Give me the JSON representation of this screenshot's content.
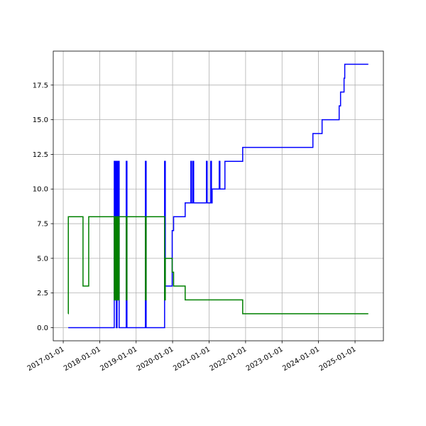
{
  "chart_data": {
    "type": "line",
    "drawstyle": "steps-post",
    "grid": true,
    "xlim": [
      "2016-09-23",
      "2025-10-12"
    ],
    "xticks": [
      "2017-01-01",
      "2018-01-01",
      "2019-01-01",
      "2020-01-01",
      "2021-01-01",
      "2022-01-01",
      "2023-01-01",
      "2024-01-01",
      "2025-01-01"
    ],
    "ylim": [
      -0.95,
      19.95
    ],
    "yticks": [
      {
        "value": 0,
        "label": "0.0"
      },
      2.5,
      {
        "value": 5,
        "label": "5.0"
      },
      7.5,
      {
        "value": 10,
        "label": "10.0"
      },
      12.5,
      {
        "value": 15,
        "label": "15.0"
      },
      17.5
    ],
    "series": [
      {
        "color": "#0000ff",
        "x": [
          "2017-02-20",
          "2018-05-27",
          "2018-06-03",
          "2018-06-10",
          "2018-06-17",
          "2018-06-24",
          "2018-07-01",
          "2018-07-08",
          "2018-07-15",
          "2018-09-24",
          "2018-10-01",
          "2019-04-04",
          "2019-04-11",
          "2019-10-13",
          "2019-10-20",
          "2019-12-28",
          "2020-01-11",
          "2020-05-06",
          "2020-07-02",
          "2020-07-09",
          "2020-07-23",
          "2020-07-30",
          "2020-12-05",
          "2020-12-12",
          "2021-01-17",
          "2021-01-24",
          "2021-01-31",
          "2021-04-12",
          "2021-04-19",
          "2021-06-08",
          "2021-12-03",
          "2023-11-06",
          "2024-02-06",
          "2024-07-26",
          "2024-08-09",
          "2024-09-13",
          "2024-09-20",
          "2025-05-14"
        ],
        "values": [
          0,
          12,
          2,
          12,
          0,
          12,
          2,
          12,
          0,
          12,
          0,
          12,
          0,
          12,
          3,
          7,
          8,
          9,
          12,
          9,
          12,
          9,
          12,
          9,
          12,
          9,
          10,
          12,
          10,
          12,
          13,
          14,
          15,
          16,
          17,
          18,
          19,
          19
        ]
      },
      {
        "color": "#008000",
        "x": [
          "2017-02-20",
          "2017-02-21",
          "2017-07-18",
          "2017-09-13",
          "2018-05-27",
          "2018-06-03",
          "2018-06-10",
          "2018-06-17",
          "2018-06-24",
          "2018-07-01",
          "2018-07-08",
          "2018-07-15",
          "2018-09-24",
          "2018-10-01",
          "2019-04-04",
          "2019-04-11",
          "2019-10-13",
          "2019-10-20",
          "2019-12-28",
          "2020-01-11",
          "2020-05-06",
          "2021-12-03",
          "2025-05-14"
        ],
        "values": [
          1,
          8,
          3,
          8,
          2,
          8,
          2,
          8,
          2,
          8,
          2,
          8,
          2,
          8,
          2,
          8,
          2,
          5,
          4,
          3,
          2,
          1,
          1
        ]
      }
    ]
  }
}
